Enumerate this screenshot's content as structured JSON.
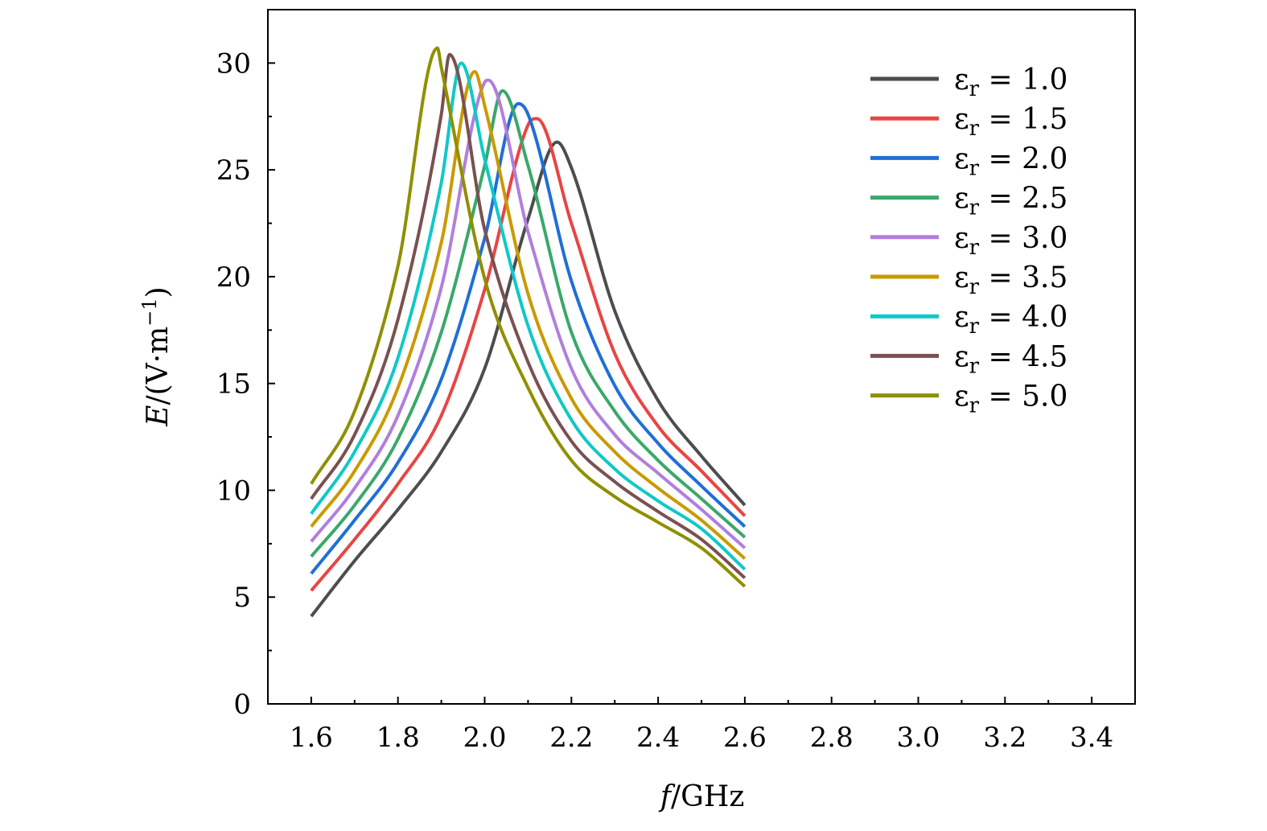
{
  "chart_data": {
    "type": "line",
    "title": "",
    "xlabel": "f/GHz",
    "xlabel_parts": {
      "var": "f",
      "rest": "/GHz"
    },
    "ylabel": "E/(V·m−1)",
    "ylabel_parts": {
      "var": "E",
      "rest": "/(V·m",
      "sup": "−1",
      "close": ")"
    },
    "xlim": [
      1.5,
      3.5
    ],
    "ylim": [
      0,
      32.5
    ],
    "xticks": [
      1.6,
      1.8,
      2.0,
      2.2,
      2.4,
      2.6,
      2.8,
      3.0,
      3.2,
      3.4
    ],
    "xtick_labels": [
      "1.6",
      "1.8",
      "2.0",
      "2.2",
      "2.4",
      "2.6",
      "2.8",
      "3.0",
      "3.2",
      "3.4"
    ],
    "xminor_step": 0.1,
    "yticks": [
      0,
      5,
      10,
      15,
      20,
      25,
      30
    ],
    "ytick_labels": [
      "0",
      "5",
      "10",
      "15",
      "20",
      "25",
      "30"
    ],
    "yminor_step": 2.5,
    "grid": false,
    "legend_position": "top-right",
    "series": [
      {
        "name": "εr = 1.0",
        "value_label": "1.0",
        "color": "#4d4d4d",
        "points": [
          [
            1.6,
            4.1
          ],
          [
            1.7,
            6.7
          ],
          [
            1.8,
            9.1
          ],
          [
            1.9,
            11.8
          ],
          [
            2.0,
            15.7
          ],
          [
            2.1,
            22.7
          ],
          [
            2.167,
            26.3
          ],
          [
            2.2,
            25.1
          ],
          [
            2.3,
            18.4
          ],
          [
            2.4,
            14.2
          ],
          [
            2.5,
            11.6
          ],
          [
            2.6,
            9.3
          ]
        ]
      },
      {
        "name": "εr = 1.5",
        "value_label": "1.5",
        "color": "#e84545",
        "points": [
          [
            1.6,
            5.3
          ],
          [
            1.7,
            7.7
          ],
          [
            1.8,
            10.3
          ],
          [
            1.9,
            13.5
          ],
          [
            2.0,
            19.4
          ],
          [
            2.1,
            27.1
          ],
          [
            2.12,
            27.4
          ],
          [
            2.2,
            22.5
          ],
          [
            2.3,
            16.4
          ],
          [
            2.4,
            13.0
          ],
          [
            2.5,
            10.9
          ],
          [
            2.6,
            8.8
          ]
        ]
      },
      {
        "name": "εr = 2.0",
        "value_label": "2.0",
        "color": "#1f6fd6",
        "points": [
          [
            1.6,
            6.1
          ],
          [
            1.7,
            8.6
          ],
          [
            1.8,
            11.3
          ],
          [
            1.9,
            15.2
          ],
          [
            2.0,
            21.8
          ],
          [
            2.078,
            28.1
          ],
          [
            2.1,
            27.6
          ],
          [
            2.2,
            19.8
          ],
          [
            2.3,
            14.9
          ],
          [
            2.4,
            12.2
          ],
          [
            2.5,
            10.2
          ],
          [
            2.6,
            8.3
          ]
        ]
      },
      {
        "name": "εr = 2.5",
        "value_label": "2.5",
        "color": "#3aa86b",
        "points": [
          [
            1.6,
            6.9
          ],
          [
            1.7,
            9.3
          ],
          [
            1.8,
            12.4
          ],
          [
            1.9,
            17.4
          ],
          [
            2.0,
            25.2
          ],
          [
            2.041,
            28.7
          ],
          [
            2.1,
            25.2
          ],
          [
            2.2,
            17.4
          ],
          [
            2.3,
            13.7
          ],
          [
            2.4,
            11.4
          ],
          [
            2.5,
            9.6
          ],
          [
            2.6,
            7.8
          ]
        ]
      },
      {
        "name": "εr = 3.0",
        "value_label": "3.0",
        "color": "#b07fdc",
        "points": [
          [
            1.6,
            7.6
          ],
          [
            1.7,
            10.1
          ],
          [
            1.8,
            13.5
          ],
          [
            1.9,
            19.5
          ],
          [
            2.0,
            29.1
          ],
          [
            2.008,
            29.2
          ],
          [
            2.1,
            22.1
          ],
          [
            2.2,
            15.7
          ],
          [
            2.3,
            12.6
          ],
          [
            2.4,
            10.8
          ],
          [
            2.5,
            9.1
          ],
          [
            2.6,
            7.3
          ]
        ]
      },
      {
        "name": "εr = 3.5",
        "value_label": "3.5",
        "color": "#c99a00",
        "points": [
          [
            1.6,
            8.3
          ],
          [
            1.7,
            10.9
          ],
          [
            1.8,
            14.8
          ],
          [
            1.9,
            21.6
          ],
          [
            1.977,
            29.6
          ],
          [
            2.0,
            28.0
          ],
          [
            2.1,
            19.2
          ],
          [
            2.2,
            14.3
          ],
          [
            2.3,
            11.8
          ],
          [
            2.4,
            10.1
          ],
          [
            2.5,
            8.6
          ],
          [
            2.6,
            6.8
          ]
        ]
      },
      {
        "name": "εr = 4.0",
        "value_label": "4.0",
        "color": "#10c8c8",
        "points": [
          [
            1.6,
            8.9
          ],
          [
            1.7,
            11.8
          ],
          [
            1.8,
            16.2
          ],
          [
            1.9,
            24.4
          ],
          [
            1.946,
            30.0
          ],
          [
            2.0,
            25.5
          ],
          [
            2.1,
            17.7
          ],
          [
            2.2,
            13.3
          ],
          [
            2.3,
            11.0
          ],
          [
            2.4,
            9.5
          ],
          [
            2.5,
            8.2
          ],
          [
            2.6,
            6.3
          ]
        ]
      },
      {
        "name": "εr = 4.5",
        "value_label": "4.5",
        "color": "#7a5050",
        "points": [
          [
            1.6,
            9.6
          ],
          [
            1.7,
            12.6
          ],
          [
            1.8,
            18.0
          ],
          [
            1.9,
            27.6
          ],
          [
            1.919,
            30.4
          ],
          [
            2.0,
            22.2
          ],
          [
            2.1,
            16.0
          ],
          [
            2.2,
            12.3
          ],
          [
            2.3,
            10.4
          ],
          [
            2.4,
            9.0
          ],
          [
            2.5,
            7.7
          ],
          [
            2.6,
            5.9
          ]
        ]
      },
      {
        "name": "εr = 5.0",
        "value_label": "5.0",
        "color": "#8f8f00",
        "points": [
          [
            1.6,
            10.3
          ],
          [
            1.7,
            13.7
          ],
          [
            1.8,
            20.5
          ],
          [
            1.891,
            30.7
          ],
          [
            1.9,
            29.8
          ],
          [
            2.0,
            19.9
          ],
          [
            2.1,
            14.8
          ],
          [
            2.2,
            11.4
          ],
          [
            2.3,
            9.7
          ],
          [
            2.4,
            8.5
          ],
          [
            2.5,
            7.3
          ],
          [
            2.6,
            5.5
          ]
        ]
      }
    ],
    "legend_symbol": "ε",
    "legend_subscript": "r",
    "legend_equals": " = "
  }
}
